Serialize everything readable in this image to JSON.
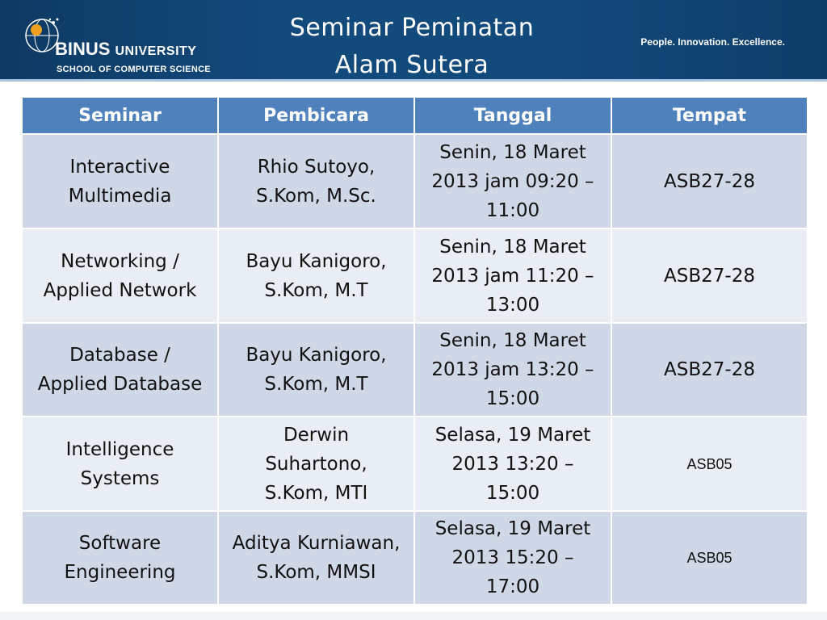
{
  "header": {
    "logo_brand": "BINUS",
    "logo_university": "UNIVERSITY",
    "logo_subtitle": "SCHOOL OF COMPUTER SCIENCE",
    "title_line1": "Seminar Peminatan",
    "title_line2": "Alam Sutera",
    "tagline": "People. Innovation. Excellence."
  },
  "table": {
    "columns": [
      "Seminar",
      "Pembicara",
      "Tanggal",
      "Tempat"
    ],
    "rows": [
      {
        "seminar": "Interactive\nMultimedia",
        "pembicara": "Rhio Sutoyo,\nS.Kom, M.Sc.",
        "tanggal": "Senin, 18 Maret\n2013 jam 09:20 –\n11:00",
        "tempat": "ASB27-28"
      },
      {
        "seminar": "Networking /\nApplied Network",
        "pembicara": "Bayu Kanigoro,\nS.Kom, M.T",
        "tanggal": "Senin, 18 Maret\n2013 jam 11:20 –\n13:00",
        "tempat": "ASB27-28"
      },
      {
        "seminar": "Database /\nApplied Database",
        "pembicara": "Bayu Kanigoro,\nS.Kom, M.T",
        "tanggal": "Senin, 18 Maret\n2013 jam 13:20 –\n15:00",
        "tempat": "ASB27-28"
      },
      {
        "seminar": "Intelligence\nSystems",
        "pembicara": "Derwin\nSuhartono,\nS.Kom, MTI",
        "tanggal": "Selasa, 19 Maret\n2013 13:20 –\n15:00",
        "tempat": "ASB05"
      },
      {
        "seminar": "Software\nEngineering",
        "pembicara": "Aditya Kurniawan,\nS.Kom, MMSI",
        "tanggal": "Selasa, 19 Maret\n2013 15:20 –\n17:00",
        "tempat": "ASB05"
      }
    ]
  },
  "colors": {
    "header_bg": "#134a7c",
    "table_header_bg": "#4f81bd",
    "row_odd_bg": "#d0d8e8",
    "row_even_bg": "#e9edf4",
    "logo_accent": "#f0a020"
  }
}
